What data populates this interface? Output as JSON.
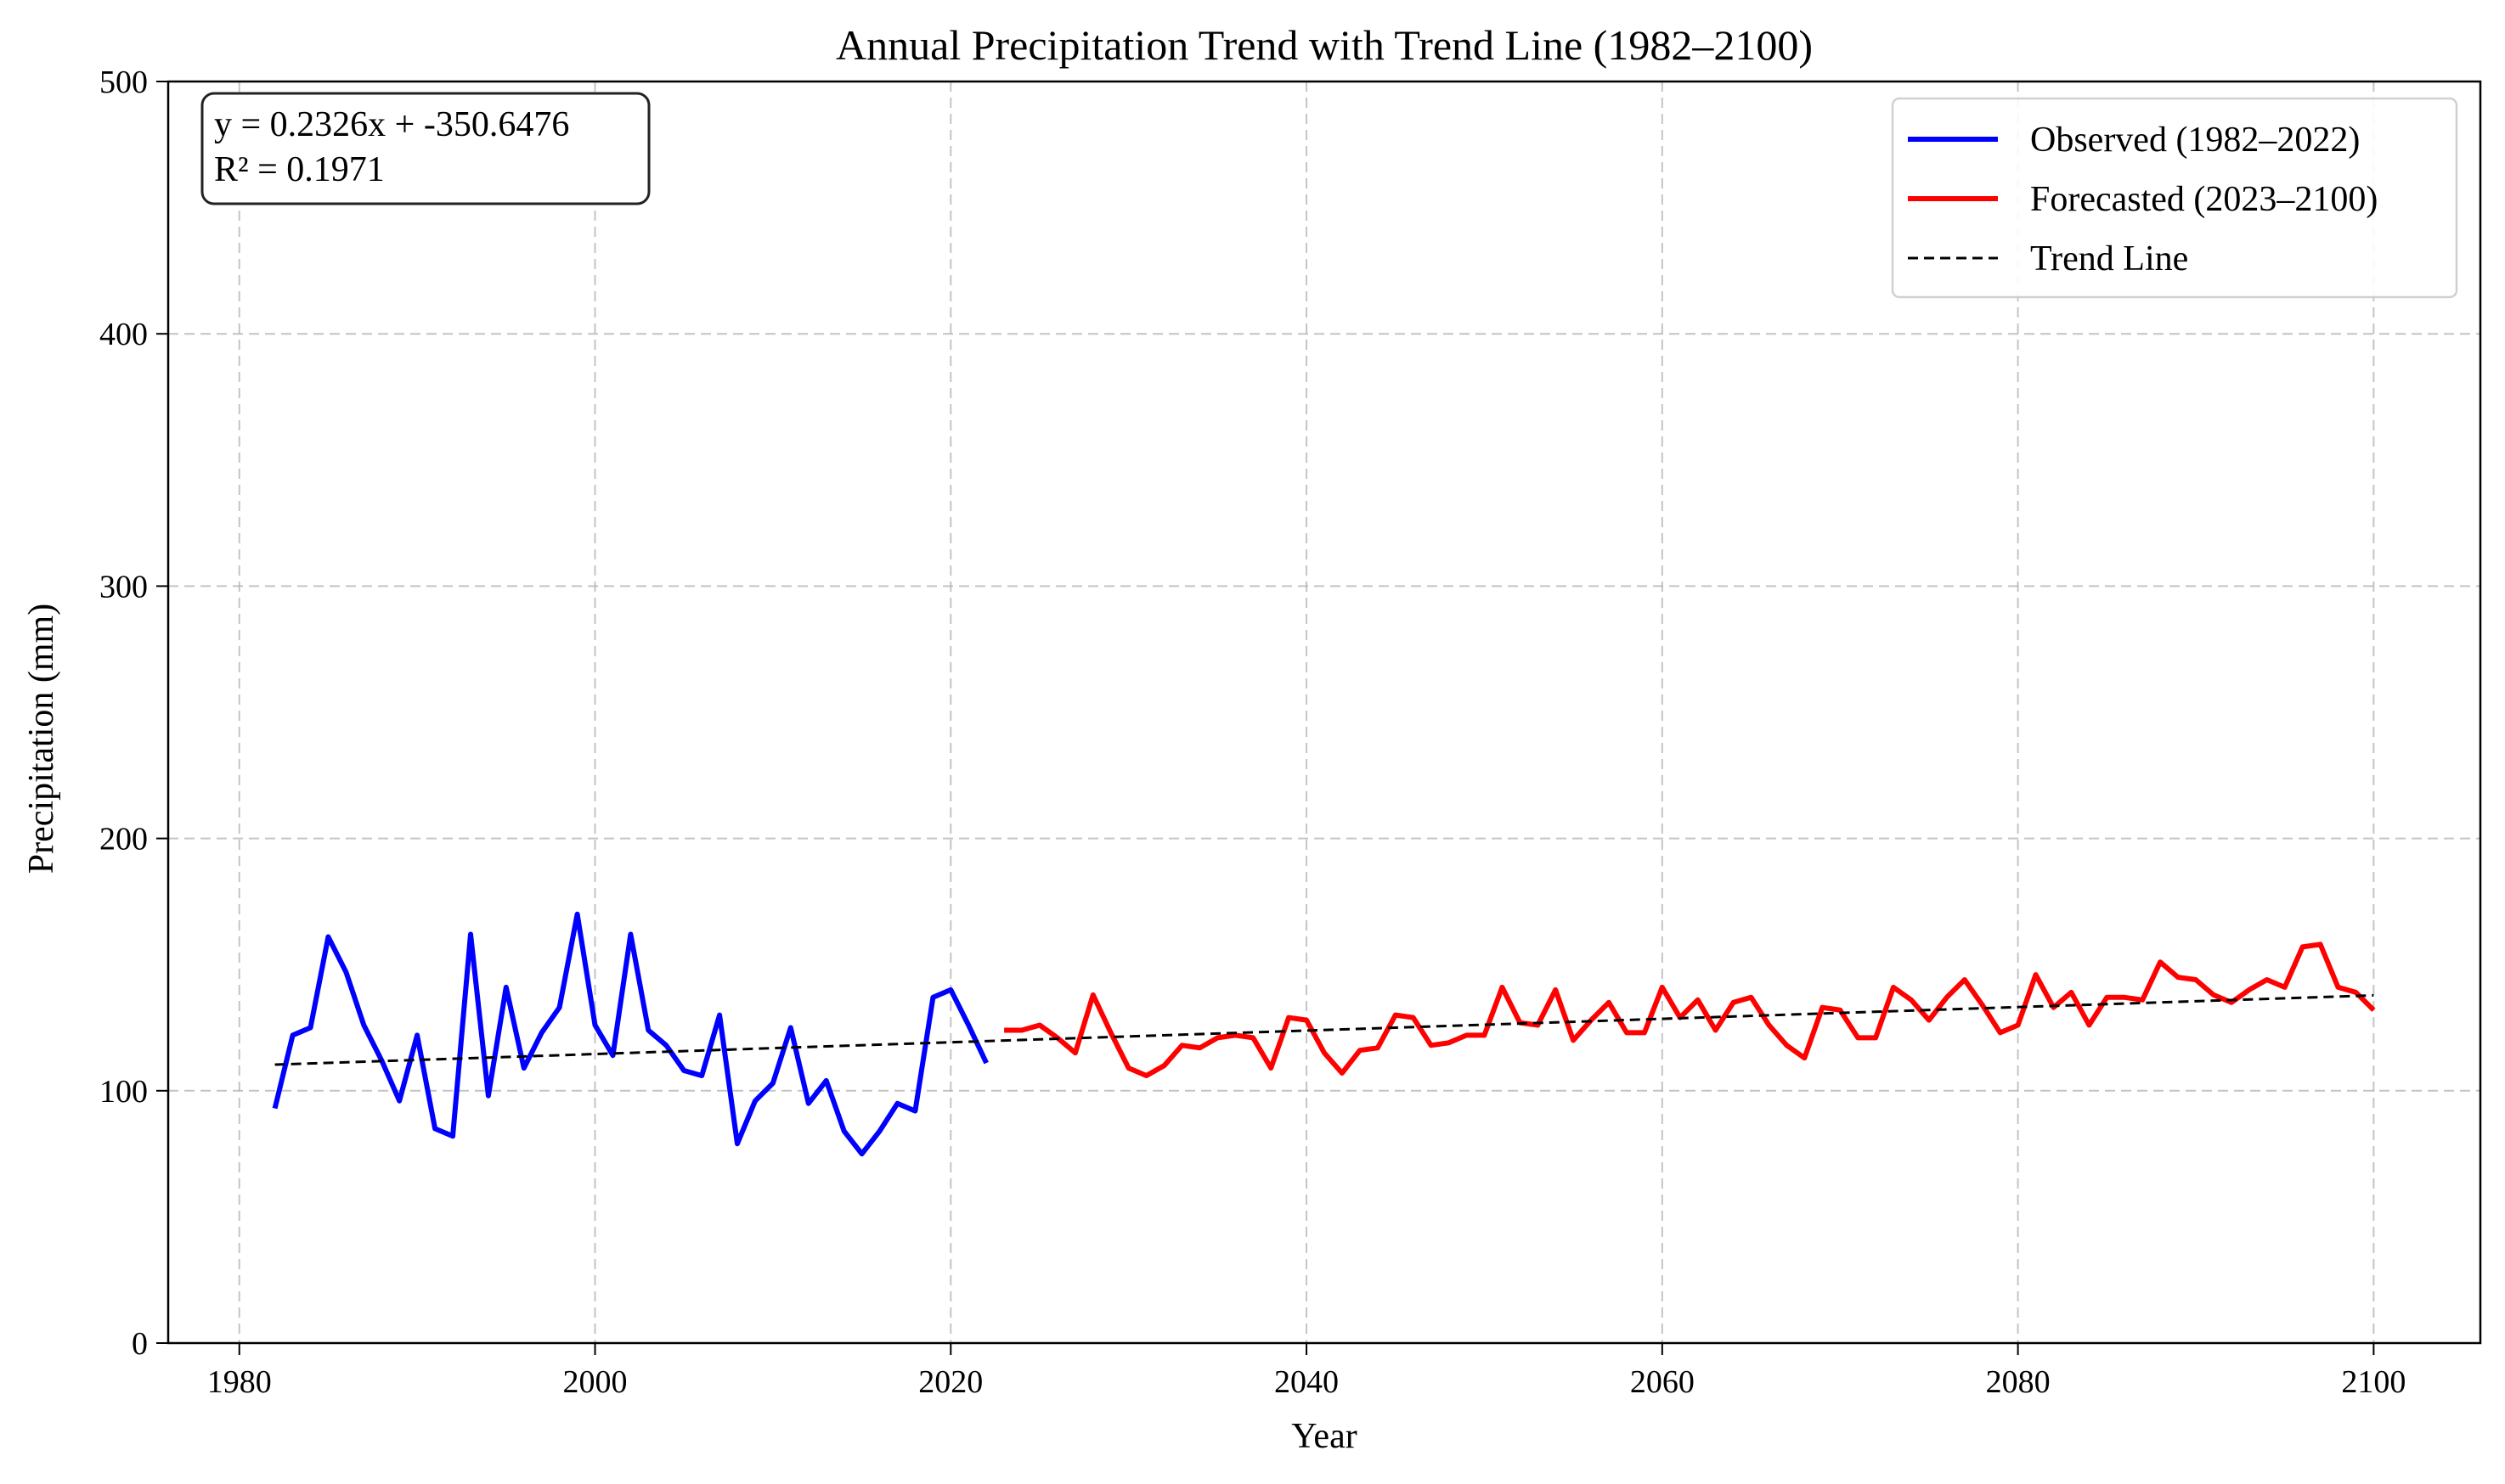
{
  "chart_data": {
    "type": "line",
    "title": "Annual Precipitation Trend with Trend Line (1982–2100)",
    "xlabel": "Year",
    "ylabel": "Precipitation (mm)",
    "xlim": [
      1976,
      2106
    ],
    "ylim": [
      0,
      500
    ],
    "x_ticks": [
      1980,
      2000,
      2020,
      2040,
      2060,
      2080,
      2100
    ],
    "y_ticks": [
      0,
      100,
      200,
      300,
      400,
      500
    ],
    "grid": true,
    "legend_position": "top-right",
    "annotation": {
      "equation": "y = 0.2326x + -350.6476",
      "r2": "R² = 0.1971"
    },
    "trend": {
      "slope": 0.2326,
      "intercept": -350.6476,
      "x_range": [
        1982,
        2100
      ]
    },
    "series": [
      {
        "name": "Observed (1982–2022)",
        "color": "#0000ff",
        "style": "solid",
        "x": [
          1982,
          1983,
          1984,
          1985,
          1986,
          1987,
          1988,
          1989,
          1990,
          1991,
          1992,
          1993,
          1994,
          1995,
          1996,
          1997,
          1998,
          1999,
          2000,
          2001,
          2002,
          2003,
          2004,
          2005,
          2006,
          2007,
          2008,
          2009,
          2010,
          2011,
          2012,
          2013,
          2014,
          2015,
          2016,
          2017,
          2018,
          2019,
          2020,
          2021,
          2022
        ],
        "y": [
          93,
          122,
          125,
          161,
          147,
          126,
          112,
          96,
          122,
          85,
          82,
          162,
          98,
          141,
          109,
          123,
          133,
          170,
          126,
          114,
          162,
          124,
          118,
          108,
          106,
          130,
          79,
          96,
          103,
          125,
          95,
          104,
          84,
          75,
          84,
          95,
          92,
          137,
          140,
          126,
          111
        ]
      },
      {
        "name": "Forecasted (2023–2100)",
        "color": "#ff0000",
        "style": "solid",
        "x": [
          2023,
          2024,
          2025,
          2026,
          2027,
          2028,
          2029,
          2030,
          2031,
          2032,
          2033,
          2034,
          2035,
          2036,
          2037,
          2038,
          2039,
          2040,
          2041,
          2042,
          2043,
          2044,
          2045,
          2046,
          2047,
          2048,
          2049,
          2050,
          2051,
          2052,
          2053,
          2054,
          2055,
          2056,
          2057,
          2058,
          2059,
          2060,
          2061,
          2062,
          2063,
          2064,
          2065,
          2066,
          2067,
          2068,
          2069,
          2070,
          2071,
          2072,
          2073,
          2074,
          2075,
          2076,
          2077,
          2078,
          2079,
          2080,
          2081,
          2082,
          2083,
          2084,
          2085,
          2086,
          2087,
          2088,
          2089,
          2090,
          2091,
          2092,
          2093,
          2094,
          2095,
          2096,
          2097,
          2098,
          2099,
          2100
        ],
        "y": [
          124,
          124,
          126,
          121,
          115,
          138,
          123,
          109,
          106,
          110,
          118,
          117,
          121,
          122,
          121,
          109,
          129,
          128,
          115,
          107,
          116,
          117,
          130,
          129,
          118,
          119,
          122,
          122,
          141,
          127,
          126,
          140,
          120,
          128,
          135,
          123,
          123,
          141,
          129,
          136,
          124,
          135,
          137,
          126,
          118,
          113,
          133,
          132,
          121,
          121,
          141,
          136,
          128,
          137,
          144,
          134,
          123,
          126,
          146,
          133,
          139,
          126,
          137,
          137,
          136,
          151,
          145,
          144,
          138,
          135,
          140,
          144,
          141,
          157,
          158,
          141,
          139,
          132
        ]
      },
      {
        "name": "Trend Line",
        "color": "#000000",
        "style": "dashed"
      }
    ]
  }
}
